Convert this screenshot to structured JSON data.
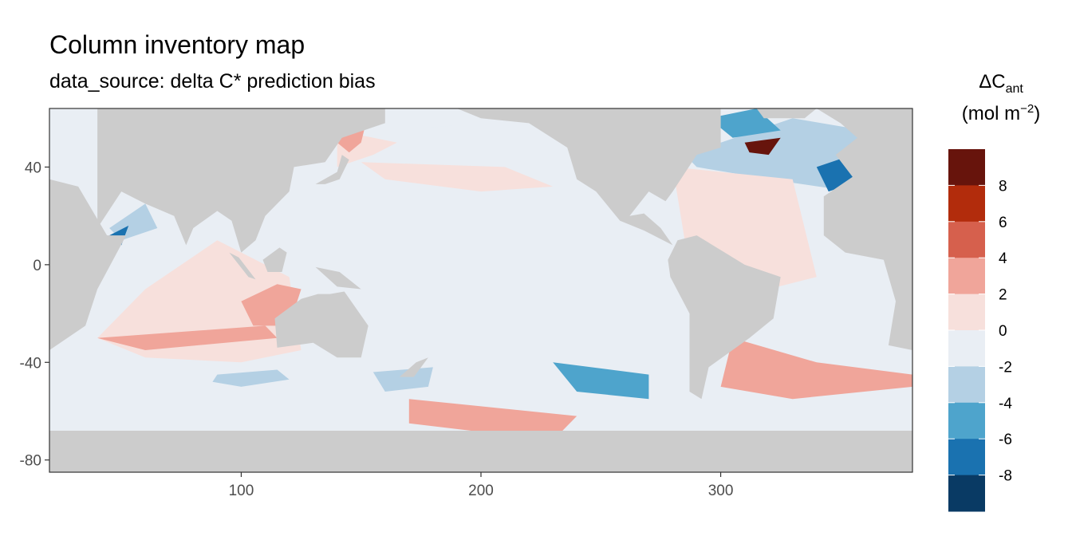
{
  "chart_data": {
    "type": "heatmap",
    "title": "Column inventory map",
    "subtitle": "data_source: delta C* prediction bias",
    "legend": {
      "title_main": "ΔC",
      "title_sub": "ant",
      "title_units_prefix": "(mol m",
      "title_units_sup": "−2",
      "title_units_suffix": ")",
      "placement": "right",
      "breaks": [
        10,
        8,
        6,
        4,
        2,
        0,
        -2,
        -4,
        -6,
        -8,
        -10
      ],
      "tick_labels": [
        "8",
        "6",
        "4",
        "2",
        "0",
        "-2",
        "-4",
        "-6",
        "-8"
      ],
      "tick_values": [
        8,
        6,
        4,
        2,
        0,
        -2,
        -4,
        -6,
        -8
      ],
      "colors": [
        "#67140c",
        "#b22c0c",
        "#d6604d",
        "#f0a59a",
        "#f7e0dc",
        "#e9eef4",
        "#b4d0e4",
        "#4ea4cc",
        "#1a72b0",
        "#093a64"
      ]
    },
    "x_ticks": [
      100,
      200,
      300
    ],
    "y_ticks": [
      40,
      0,
      -40,
      -80
    ],
    "xlim": [
      20,
      380
    ],
    "ylim": [
      -85,
      64
    ],
    "land_color": "#cccccc",
    "grid": false,
    "regions": [
      {
        "name": "north-pacific-west",
        "value": 1,
        "polygon": [
          [
            140,
            55
          ],
          [
            165,
            50
          ],
          [
            155,
            45
          ],
          [
            140,
            40
          ]
        ]
      },
      {
        "name": "kuroshio",
        "value": 3,
        "polygon": [
          [
            140,
            56
          ],
          [
            152,
            58
          ],
          [
            150,
            50
          ],
          [
            145,
            46
          ],
          [
            140,
            50
          ]
        ]
      },
      {
        "name": "np-subpolar-blue",
        "value": -1,
        "polygon": [
          [
            165,
            55
          ],
          [
            200,
            58
          ],
          [
            210,
            50
          ],
          [
            185,
            45
          ],
          [
            165,
            48
          ]
        ]
      },
      {
        "name": "np-band-pink",
        "value": 1,
        "polygon": [
          [
            150,
            42
          ],
          [
            210,
            40
          ],
          [
            230,
            32
          ],
          [
            200,
            30
          ],
          [
            160,
            35
          ]
        ]
      },
      {
        "name": "indian-ocean-pink",
        "value": 1,
        "polygon": [
          [
            40,
            -30
          ],
          [
            60,
            -10
          ],
          [
            90,
            10
          ],
          [
            120,
            -5
          ],
          [
            125,
            -35
          ],
          [
            100,
            -40
          ],
          [
            60,
            -38
          ]
        ]
      },
      {
        "name": "indian-ocean-red",
        "value": 3,
        "polygon": [
          [
            100,
            -15
          ],
          [
            115,
            -8
          ],
          [
            125,
            -10
          ],
          [
            120,
            -25
          ],
          [
            105,
            -25
          ]
        ]
      },
      {
        "name": "south-indian-band",
        "value": 3,
        "polygon": [
          [
            40,
            -30
          ],
          [
            110,
            -25
          ],
          [
            115,
            -30
          ],
          [
            60,
            -35
          ]
        ]
      },
      {
        "name": "arabian-sea-blue",
        "value": -3,
        "polygon": [
          [
            45,
            15
          ],
          [
            60,
            25
          ],
          [
            65,
            15
          ],
          [
            50,
            10
          ]
        ]
      },
      {
        "name": "arabian-sea-deep",
        "value": -7,
        "polygon": [
          [
            45,
            12
          ],
          [
            53,
            16
          ],
          [
            50,
            8
          ]
        ]
      },
      {
        "name": "south-australia-blue",
        "value": -3,
        "polygon": [
          [
            90,
            -45
          ],
          [
            115,
            -43
          ],
          [
            120,
            -47
          ],
          [
            100,
            -50
          ],
          [
            88,
            -48
          ]
        ]
      },
      {
        "name": "tasman-blue",
        "value": -3,
        "polygon": [
          [
            155,
            -44
          ],
          [
            180,
            -42
          ],
          [
            178,
            -50
          ],
          [
            160,
            -52
          ]
        ]
      },
      {
        "name": "south-pacific-blue",
        "value": -5,
        "polygon": [
          [
            230,
            -40
          ],
          [
            270,
            -45
          ],
          [
            270,
            -55
          ],
          [
            240,
            -52
          ]
        ]
      },
      {
        "name": "south-pacific-pink",
        "value": 3,
        "polygon": [
          [
            170,
            -55
          ],
          [
            240,
            -62
          ],
          [
            230,
            -72
          ],
          [
            170,
            -65
          ]
        ]
      },
      {
        "name": "south-atlantic-pink",
        "value": 3,
        "polygon": [
          [
            305,
            -30
          ],
          [
            340,
            -40
          ],
          [
            380,
            -45
          ],
          [
            380,
            -50
          ],
          [
            330,
            -55
          ],
          [
            300,
            -50
          ]
        ]
      },
      {
        "name": "north-atlantic-blue",
        "value": -3,
        "polygon": [
          [
            285,
            45
          ],
          [
            330,
            60
          ],
          [
            360,
            55
          ],
          [
            355,
            30
          ],
          [
            320,
            35
          ],
          [
            290,
            40
          ]
        ]
      },
      {
        "name": "north-atlantic-deep",
        "value": -7,
        "polygon": [
          [
            340,
            40
          ],
          [
            355,
            45
          ],
          [
            360,
            35
          ],
          [
            345,
            30
          ]
        ]
      },
      {
        "name": "north-atlantic-red",
        "value": 9,
        "polygon": [
          [
            310,
            50
          ],
          [
            325,
            52
          ],
          [
            320,
            45
          ],
          [
            312,
            46
          ]
        ]
      },
      {
        "name": "labrador-blue",
        "value": -5,
        "polygon": [
          [
            295,
            60
          ],
          [
            315,
            64
          ],
          [
            325,
            55
          ],
          [
            305,
            52
          ]
        ]
      },
      {
        "name": "tropical-atlantic-pink",
        "value": 3,
        "polygon": [
          [
            290,
            22
          ],
          [
            320,
            22
          ],
          [
            320,
            12
          ],
          [
            292,
            14
          ]
        ]
      },
      {
        "name": "west-atlantic-pink",
        "value": 1,
        "polygon": [
          [
            280,
            40
          ],
          [
            330,
            35
          ],
          [
            340,
            -5
          ],
          [
            300,
            -15
          ],
          [
            285,
            10
          ]
        ]
      }
    ]
  }
}
